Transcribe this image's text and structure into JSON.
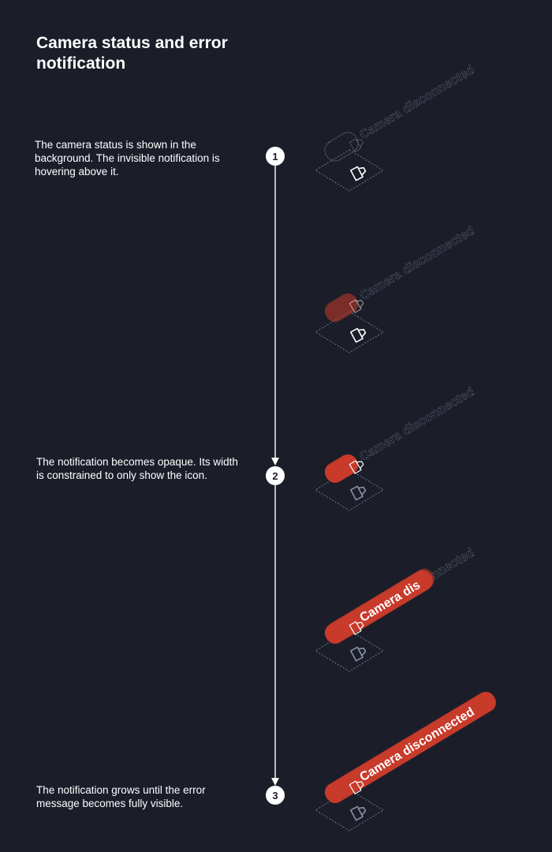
{
  "title": "Camera status and error notification",
  "steps": [
    {
      "number": "1",
      "text": "The camera status is shown in the background. The invisible notification is hovering above it."
    },
    {
      "number": "2",
      "text": "The notification becomes opaque. Its width is constrained to only show the icon."
    },
    {
      "number": "3",
      "text": "The notification grows until the error message becomes fully visible."
    }
  ],
  "notification": {
    "message": "Camera disconnected",
    "partial_message": "Camera dis"
  },
  "colors": {
    "background": "#1b1e29",
    "notification": "#c83a2a",
    "outline": "#6f7586",
    "white": "#ffffff"
  }
}
